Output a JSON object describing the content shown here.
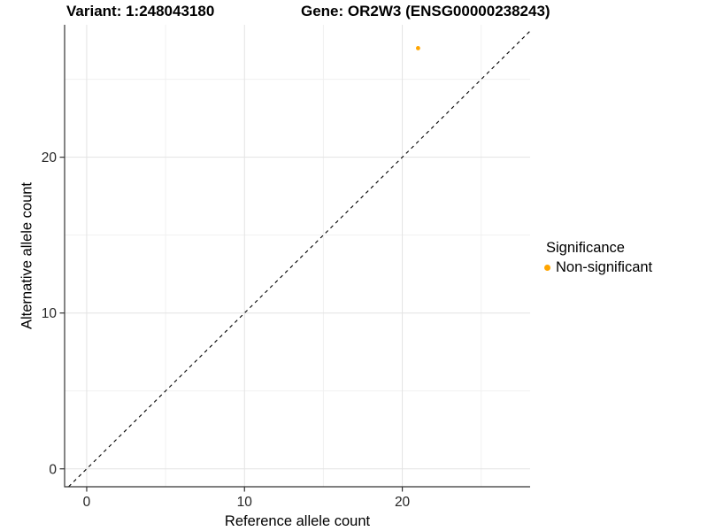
{
  "header": {
    "title_left": "Variant: 1:248043180",
    "title_right": "Gene: OR2W3 (ENSG00000238243)"
  },
  "chart_data": {
    "type": "scatter",
    "xlabel": "Reference allele count",
    "ylabel": "Alternative allele count",
    "xlim": [
      -1.4,
      28.1
    ],
    "ylim": [
      -1.15,
      28.5
    ],
    "x_major_ticks": [
      0,
      10,
      20
    ],
    "x_minor_ticks": [
      5,
      15,
      25
    ],
    "y_major_ticks": [
      0,
      10,
      20
    ],
    "y_minor_ticks": [
      5,
      15,
      25
    ],
    "grid": true,
    "identity_line": {
      "equation": "y = x",
      "style": "dashed",
      "color": "#000000"
    },
    "series": [
      {
        "name": "Non-significant",
        "color": "#FFA500",
        "points": [
          {
            "x": 21,
            "y": 27
          }
        ]
      }
    ],
    "legend": {
      "title": "Significance",
      "position": "right",
      "items": [
        {
          "label": "Non-significant",
          "color": "#FFA500"
        }
      ]
    },
    "colors": {
      "grid_major": "#E3E3E3",
      "grid_minor": "#F1F1F1",
      "axis_line": "#333333",
      "tick_label": "#262626",
      "background": "#FFFFFF"
    }
  }
}
